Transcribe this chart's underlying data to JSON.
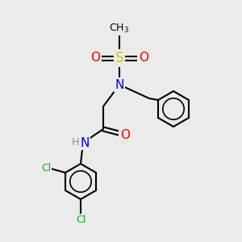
{
  "bg_color": "#ebebeb",
  "bond_color": "#000000",
  "bond_width": 1.5,
  "atom_colors": {
    "N": "#0000ee",
    "O": "#ff0000",
    "S": "#cccc00",
    "Cl": "#00bb00",
    "C": "#000000",
    "H": "#7a9a9a"
  },
  "font_size": 11,
  "font_size_small": 9
}
